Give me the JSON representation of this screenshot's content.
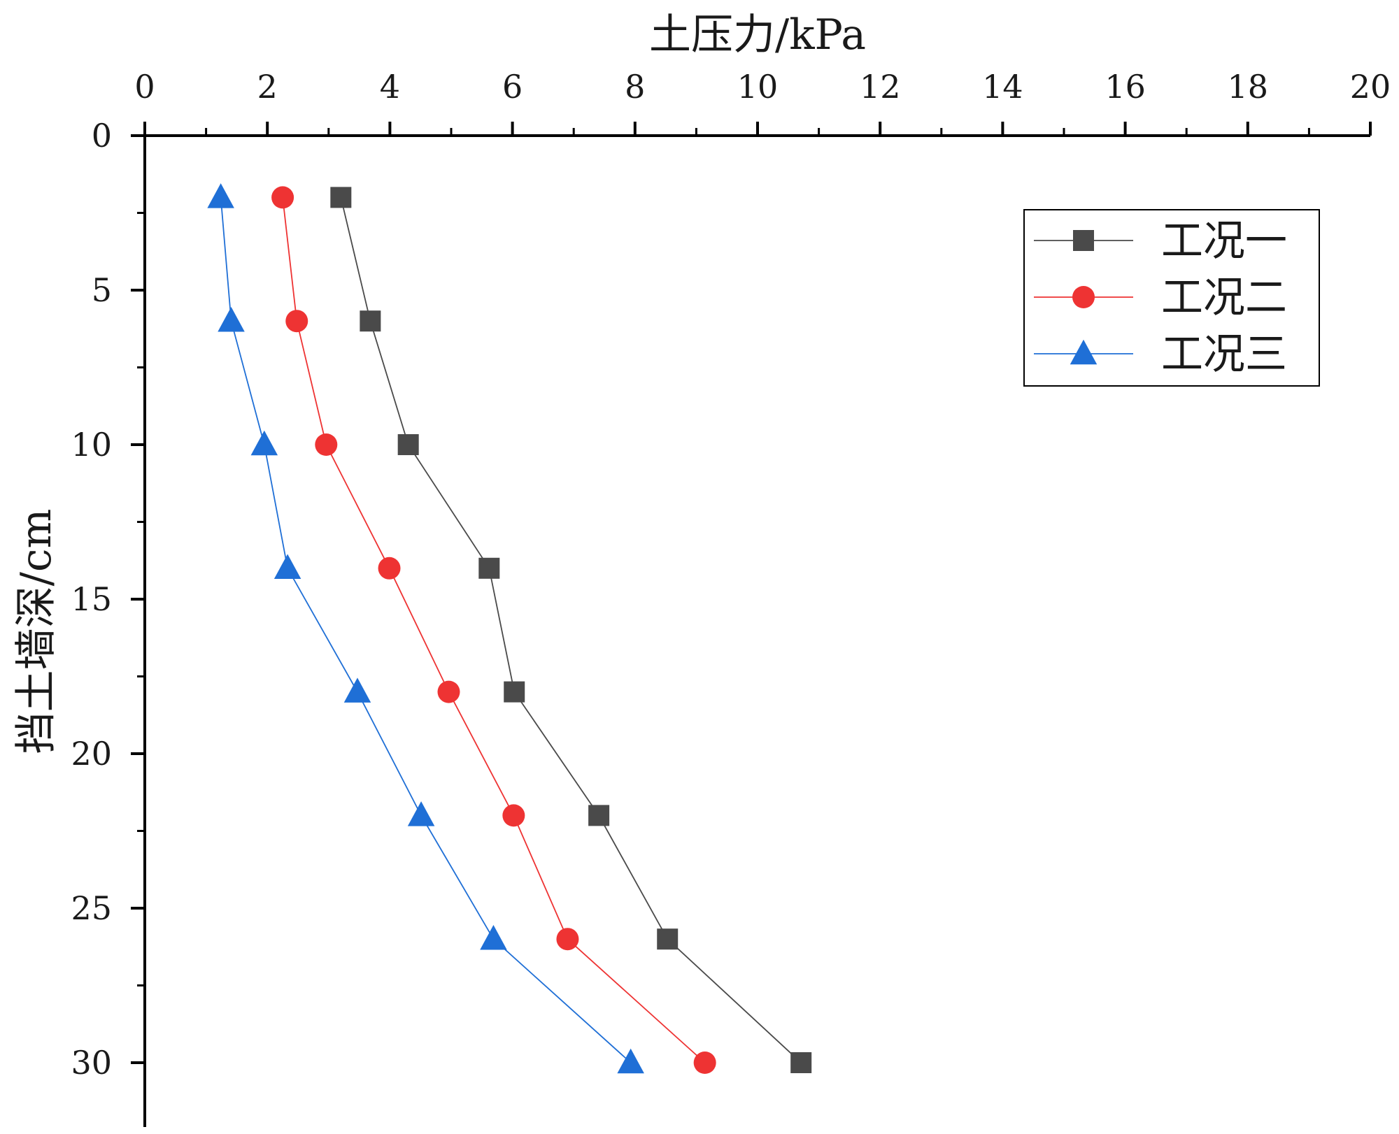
{
  "chart_data": {
    "type": "line",
    "xlabel": "土压力/kPa",
    "ylabel": "挡土墙深/cm",
    "x_axis_position": "top",
    "y_axis_inverted": true,
    "xlim": [
      0,
      20
    ],
    "ylim": [
      0,
      32
    ],
    "x_ticks": [
      0,
      2,
      4,
      6,
      8,
      10,
      12,
      14,
      16,
      18,
      20
    ],
    "y_ticks": [
      0,
      5,
      10,
      15,
      20,
      25,
      30
    ],
    "grid": false,
    "legend_position": "top-right",
    "series": [
      {
        "name": "工况一",
        "color": "#4a4a4a",
        "marker": "square",
        "points": [
          [
            3.2,
            2
          ],
          [
            3.68,
            6
          ],
          [
            4.3,
            10
          ],
          [
            5.62,
            14
          ],
          [
            6.03,
            18
          ],
          [
            7.41,
            22
          ],
          [
            8.53,
            26
          ],
          [
            10.71,
            30
          ]
        ]
      },
      {
        "name": "工况二",
        "color": "#ee3333",
        "marker": "circle",
        "points": [
          [
            2.25,
            2
          ],
          [
            2.48,
            6
          ],
          [
            2.96,
            10
          ],
          [
            3.99,
            14
          ],
          [
            4.96,
            18
          ],
          [
            6.02,
            22
          ],
          [
            6.9,
            26
          ],
          [
            9.14,
            30
          ]
        ]
      },
      {
        "name": "工况三",
        "color": "#1f6fd6",
        "marker": "triangle",
        "points": [
          [
            1.24,
            2
          ],
          [
            1.41,
            6
          ],
          [
            1.95,
            10
          ],
          [
            2.33,
            14
          ],
          [
            3.47,
            18
          ],
          [
            4.51,
            22
          ],
          [
            5.69,
            26
          ],
          [
            7.93,
            30
          ]
        ]
      }
    ]
  }
}
